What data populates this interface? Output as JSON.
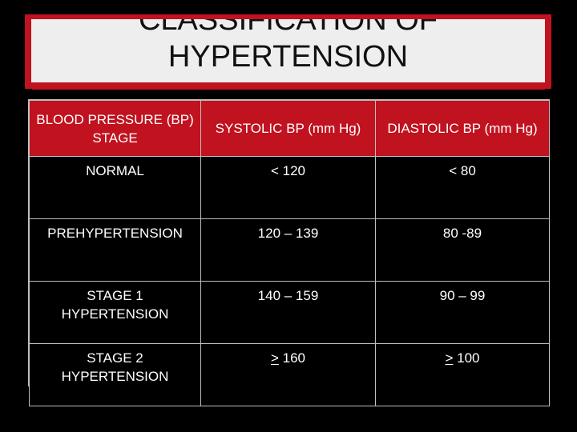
{
  "title": {
    "line1": "CLASSIFICATION OF",
    "line2": "HYPERTENSION"
  },
  "table": {
    "headers": [
      "BLOOD PRESSURE (BP) STAGE",
      "SYSTOLIC BP (mm Hg)",
      "DIASTOLIC BP (mm Hg)"
    ],
    "rows": [
      {
        "stage": "NORMAL",
        "systolic": "< 120",
        "diastolic": "< 80"
      },
      {
        "stage": "PREHYPERTENSION",
        "systolic": "120 – 139",
        "diastolic": "80 -89"
      },
      {
        "stage": "STAGE 1 HYPERTENSION",
        "systolic": "140 – 159",
        "diastolic": "90 – 99"
      },
      {
        "stage": "STAGE 2 HYPERTENSION",
        "systolic_symbol": ">",
        "systolic_value": " 160",
        "diastolic_symbol": ">",
        "diastolic_value": " 100"
      }
    ]
  },
  "colors": {
    "background": "#000000",
    "header_red": "#c1121f",
    "title_panel": "#eeeeee",
    "grid_line": "#bfbfbf",
    "text": "#ffffff"
  }
}
